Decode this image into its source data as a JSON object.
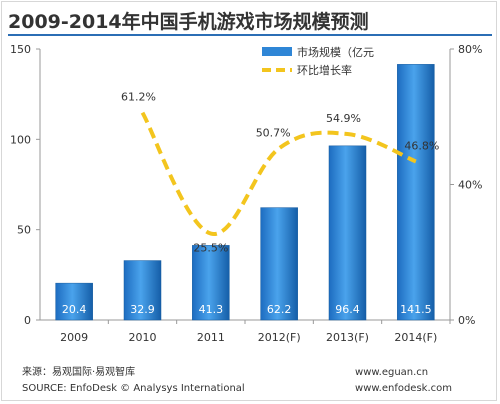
{
  "title": "2009-2014年中国手机游戏市场规模预测",
  "footer": {
    "source_cn": "来源：易观国际·易观智库",
    "source_en": "SOURCE: EnfoDesk © Analysys International",
    "url1": "www.eguan.cn",
    "url2": "www.enfodesk.com"
  },
  "colors": {
    "bar": "#2f86d6",
    "bar_dark": "#145a9e",
    "line": "#f3c51e",
    "title_rule": "#2b6eb5"
  },
  "chart_data": {
    "type": "bar",
    "categories": [
      "2009",
      "2010",
      "2011",
      "2012(F)",
      "2013(F)",
      "2014(F)"
    ],
    "series": [
      {
        "name": "市场规模（亿元",
        "axis": "left",
        "values": [
          20.4,
          32.9,
          41.3,
          62.2,
          96.4,
          141.5
        ],
        "labels": [
          "20.4",
          "32.9",
          "41.3",
          "62.2",
          "96.4",
          "141.5"
        ]
      },
      {
        "name": "环比增长率",
        "type": "line",
        "axis": "right",
        "style": "dashed",
        "values": [
          null,
          61.2,
          25.5,
          50.7,
          54.9,
          46.8
        ],
        "labels": [
          "",
          "61.2%",
          "25.5%",
          "50.7%",
          "54.9%",
          "46.8%"
        ]
      }
    ],
    "y_left": {
      "min": 0,
      "max": 150,
      "ticks": [
        "0",
        "50",
        "100",
        "150"
      ]
    },
    "y_right": {
      "min": 0,
      "max": 80,
      "ticks": [
        "0%",
        "40%",
        "80%"
      ]
    },
    "legend": "top-right",
    "grid": false
  }
}
